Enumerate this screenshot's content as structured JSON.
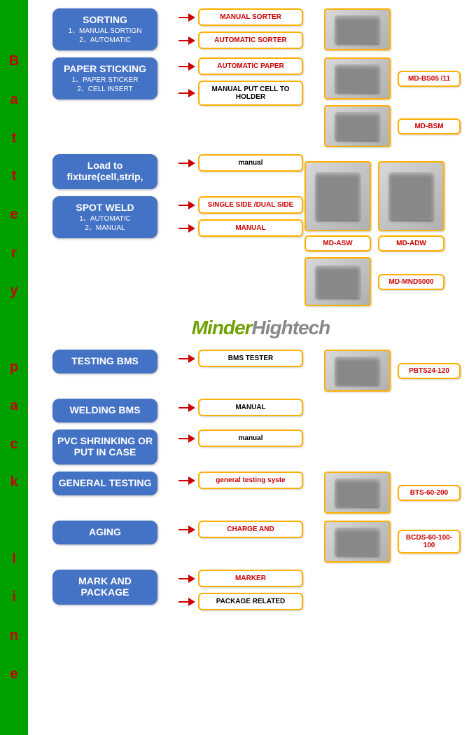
{
  "sidebar_letters": [
    "B",
    "a",
    "t",
    "t",
    "e",
    "r",
    "y",
    "",
    "p",
    "a",
    "c",
    "k",
    "",
    "l",
    "i",
    "n",
    "e"
  ],
  "brand": {
    "part1": "Minder",
    "part2": "Hightech"
  },
  "steps": [
    {
      "title": "SORTING",
      "subs": [
        "1、MANUAL SORTIGN",
        "2、AUTOMATIC"
      ],
      "subboxes": [
        {
          "t": "MANUAL SORTER",
          "c": "red"
        },
        {
          "t": "AUTOMATIC SORTER",
          "c": "red"
        }
      ],
      "imgs": [
        {
          "label": ""
        }
      ]
    },
    {
      "title": "PAPER STICKING",
      "subs": [
        "1、PAPER STICKER",
        "2、CELL INSERT"
      ],
      "subboxes": [
        {
          "t": "AUTOMATIC PAPER",
          "c": "red"
        },
        {
          "t": "MANUAL PUT CELL TO HOLDER",
          "c": "black"
        }
      ],
      "imgs": [
        {
          "label": "MD-BS05 /11"
        },
        {
          "label": "MD-BSM"
        }
      ]
    },
    {
      "title": "Load to fixture(cell,strip,",
      "subs": [],
      "subboxes": [
        {
          "t": "manual",
          "c": "black"
        }
      ],
      "imgs": []
    },
    {
      "title": "SPOT WELD",
      "subs": [
        "1、AUTOMATIC",
        "2、MANUAL"
      ],
      "subboxes": [
        {
          "t": "SINGLE SIDE /DUAL SIDE",
          "c": "red"
        },
        {
          "t": "MANUAL",
          "c": "red"
        }
      ],
      "imgs": []
    },
    {
      "title": "TESTING BMS",
      "subs": [],
      "subboxes": [
        {
          "t": "BMS TESTER",
          "c": "black"
        }
      ],
      "imgs": [
        {
          "label": "PBTS24-120"
        }
      ]
    },
    {
      "title": "WELDING BMS",
      "subs": [],
      "subboxes": [
        {
          "t": "MANUAL",
          "c": "black"
        }
      ],
      "imgs": []
    },
    {
      "title": "PVC SHRINKING OR PUT IN CASE",
      "subs": [],
      "subboxes": [
        {
          "t": "manual",
          "c": "black"
        }
      ],
      "imgs": []
    },
    {
      "title": "GENERAL TESTING",
      "subs": [],
      "subboxes": [
        {
          "t": "general testing syste",
          "c": "red"
        }
      ],
      "imgs": [
        {
          "label": "BTS-60-200"
        }
      ]
    },
    {
      "title": "AGING",
      "subs": [],
      "subboxes": [
        {
          "t": "CHARGE AND",
          "c": "red"
        }
      ],
      "imgs": [
        {
          "label": "BCDS-60-100-100"
        }
      ]
    },
    {
      "title": "MARK AND PACKAGE",
      "subs": [],
      "subboxes": [
        {
          "t": "MARKER",
          "c": "red"
        },
        {
          "t": "PACKAGE RELATED",
          "c": "black"
        }
      ],
      "imgs": []
    }
  ],
  "spot_imgs": [
    {
      "pair": true,
      "labels": [
        "MD-ASW",
        "MD-ADW"
      ]
    },
    {
      "pair": false,
      "labels": [
        "MD-MND5000"
      ]
    }
  ],
  "colors": {
    "process": "#4472c4",
    "border": "#ffb000",
    "accent": "#cc0000",
    "sidebar": "#00a000"
  }
}
